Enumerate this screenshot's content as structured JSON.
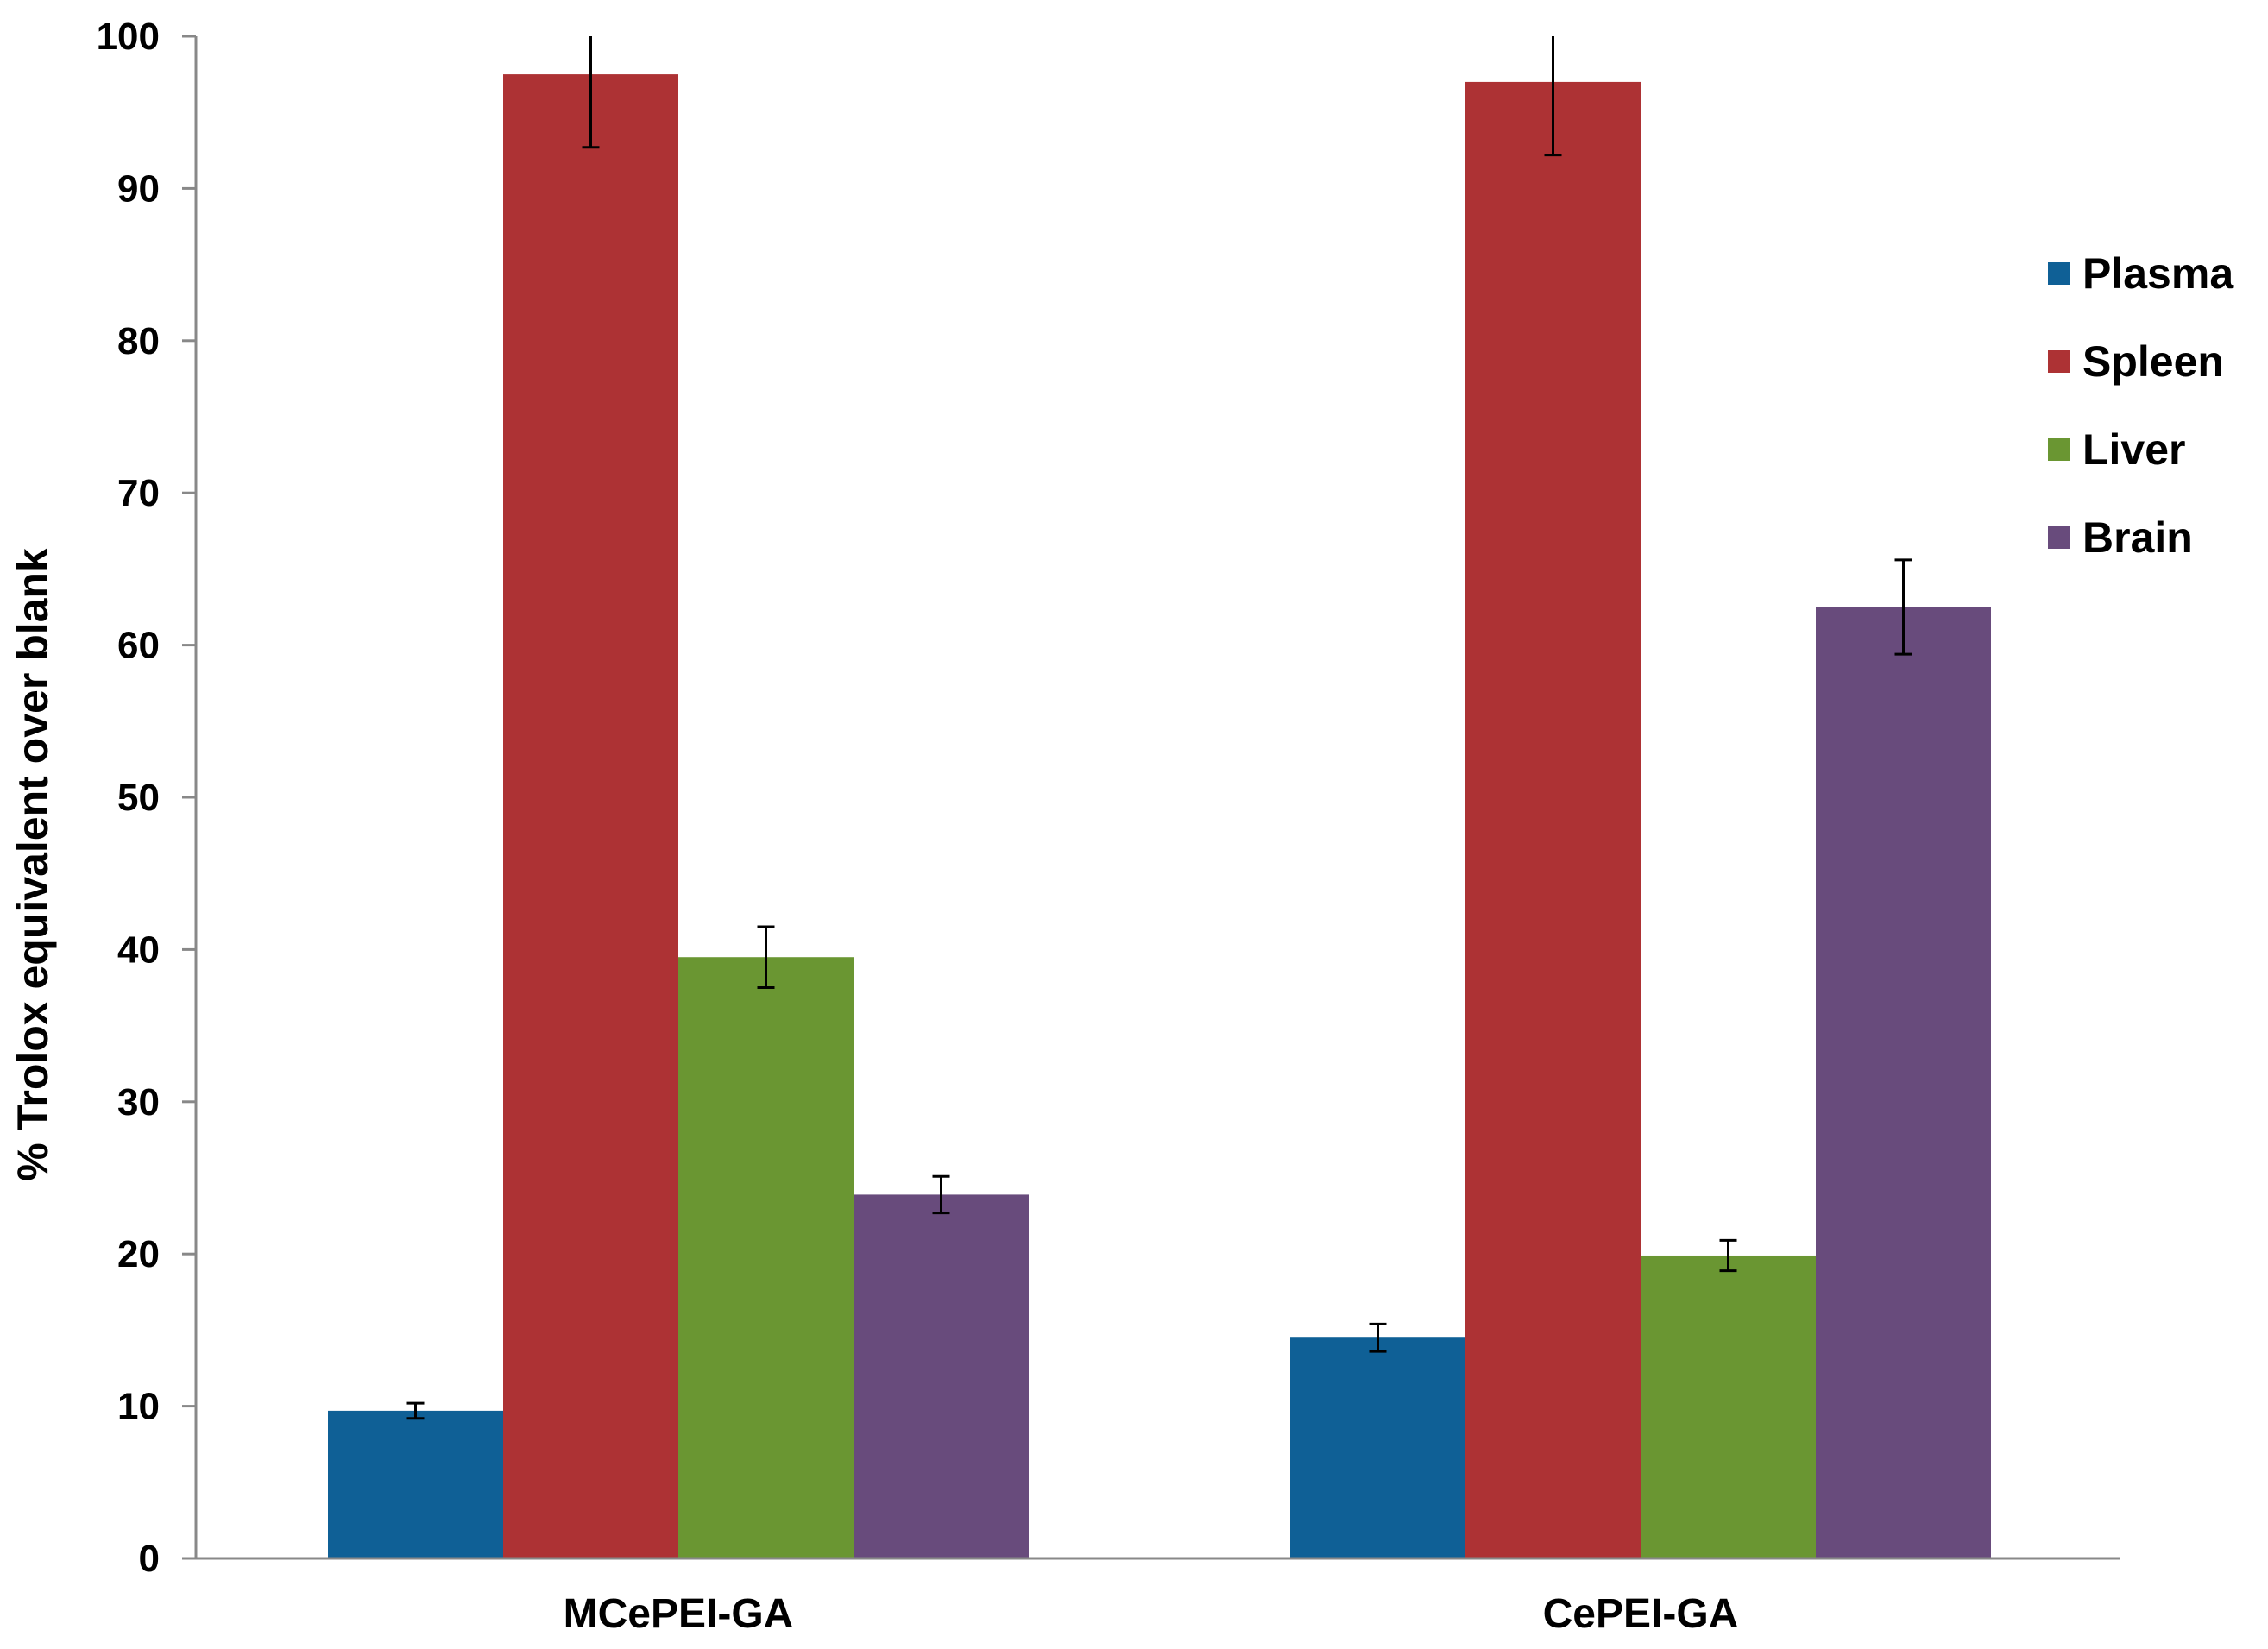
{
  "chart_data": {
    "type": "bar",
    "ylabel": "% Trolox equivalent over blank",
    "xlabel": "",
    "ylim": [
      0,
      100
    ],
    "yticks": [
      0,
      10,
      20,
      30,
      40,
      50,
      60,
      70,
      80,
      90,
      100
    ],
    "grid": false,
    "legend_position": "right",
    "categories": [
      "MCePEI-GA",
      "CePEI-GA"
    ],
    "series": [
      {
        "name": "Plasma",
        "color": "#0f6096",
        "values": [
          9.7,
          14.5
        ],
        "errors": [
          0.5,
          0.9
        ]
      },
      {
        "name": "Spleen",
        "color": "#ad3234",
        "values": [
          97.5,
          97.0
        ],
        "errors": [
          4.8,
          4.8
        ]
      },
      {
        "name": "Liver",
        "color": "#6a9632",
        "values": [
          39.5,
          19.9
        ],
        "errors": [
          2.0,
          1.0
        ]
      },
      {
        "name": "Brain",
        "color": "#684b7c",
        "values": [
          23.9,
          62.5
        ],
        "errors": [
          1.2,
          3.1
        ]
      }
    ]
  }
}
